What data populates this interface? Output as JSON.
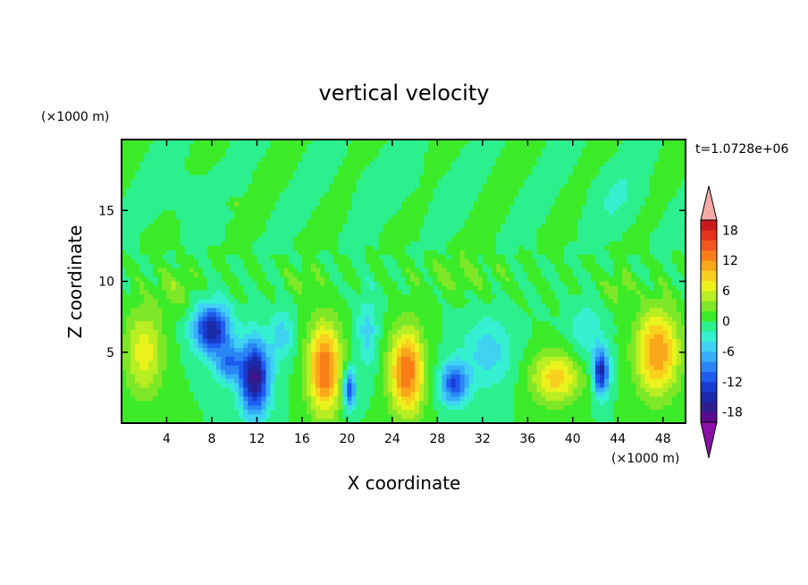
{
  "chart_data": {
    "type": "heatmap",
    "title": "vertical velocity",
    "xlabel": "X coordinate",
    "ylabel": "Z coordinate",
    "x_unit_label": "(×1000 m)",
    "y_unit_label": "(×1000 m)",
    "time_label": "t=1.0728e+06",
    "xlim": [
      0,
      50
    ],
    "ylim": [
      0,
      20
    ],
    "x_ticks": [
      4,
      8,
      12,
      16,
      20,
      24,
      28,
      32,
      36,
      40,
      44,
      48
    ],
    "y_ticks": [
      5,
      10,
      15
    ],
    "colorbar": {
      "levels": [
        -20,
        -18,
        -16,
        -14,
        -12,
        -10,
        -8,
        -6,
        -4,
        -2,
        0,
        2,
        4,
        6,
        8,
        10,
        12,
        14,
        16,
        18,
        20
      ],
      "tick_labels": [
        18,
        12,
        6,
        0,
        -6,
        -12,
        -18
      ],
      "colors": [
        "#5a0a8e",
        "#2f1c8e",
        "#1a2aa8",
        "#1a3ccf",
        "#1e5cf0",
        "#2a86f5",
        "#36aef7",
        "#3fd2f2",
        "#35f0d0",
        "#2cf08e",
        "#3ceb28",
        "#7ee828",
        "#b8ee22",
        "#ecf21c",
        "#fad01e",
        "#f9a61a",
        "#f97e18",
        "#f2561c",
        "#e4341e",
        "#c81c1c"
      ],
      "under_color": "#8b10a8",
      "over_color": "#f7aaa8"
    },
    "blobs": [
      {
        "x": 2.0,
        "z": 5.0,
        "sx": 1.7,
        "sz": 3.2,
        "v": 7
      },
      {
        "x": 4.8,
        "z": 9.5,
        "sx": 1.5,
        "sz": 1.6,
        "v": 3
      },
      {
        "x": 8.0,
        "z": 6.6,
        "sx": 1.6,
        "sz": 1.7,
        "v": -16
      },
      {
        "x": 9.5,
        "z": 4.2,
        "sx": 1.2,
        "sz": 1.3,
        "v": -9
      },
      {
        "x": 11.8,
        "z": 3.2,
        "sx": 1.3,
        "sz": 2.6,
        "v": -18
      },
      {
        "x": 14.2,
        "z": 6.2,
        "sx": 1.0,
        "sz": 1.8,
        "v": -5
      },
      {
        "x": 18.0,
        "z": 3.8,
        "sx": 1.5,
        "sz": 3.2,
        "v": 14
      },
      {
        "x": 20.2,
        "z": 2.4,
        "sx": 0.6,
        "sz": 1.4,
        "v": -12
      },
      {
        "x": 21.8,
        "z": 6.5,
        "sx": 0.9,
        "sz": 2.5,
        "v": -5
      },
      {
        "x": 25.3,
        "z": 3.6,
        "sx": 1.5,
        "sz": 3.0,
        "v": 14
      },
      {
        "x": 29.5,
        "z": 2.8,
        "sx": 1.2,
        "sz": 1.5,
        "v": -12
      },
      {
        "x": 32.5,
        "z": 5.0,
        "sx": 2.2,
        "sz": 2.5,
        "v": -5
      },
      {
        "x": 38.5,
        "z": 3.2,
        "sx": 2.2,
        "sz": 1.8,
        "v": 9
      },
      {
        "x": 42.5,
        "z": 3.6,
        "sx": 0.7,
        "sz": 1.6,
        "v": -15
      },
      {
        "x": 41.2,
        "z": 6.5,
        "sx": 1.5,
        "sz": 2.0,
        "v": -4
      },
      {
        "x": 47.5,
        "z": 5.0,
        "sx": 1.9,
        "sz": 3.0,
        "v": 12
      },
      {
        "x": 44.0,
        "z": 9.5,
        "sx": 1.2,
        "sz": 1.2,
        "v": 3
      },
      {
        "x": 16.0,
        "z": 10.0,
        "sx": 1.5,
        "sz": 1.2,
        "v": 2
      },
      {
        "x": 30.0,
        "z": 10.5,
        "sx": 4.0,
        "sz": 1.5,
        "v": 2
      },
      {
        "x": 24.0,
        "z": 17.0,
        "sx": 5.0,
        "sz": 2.0,
        "v": -1
      },
      {
        "x": 6.0,
        "z": 16.0,
        "sx": 3.0,
        "sz": 2.0,
        "v": -1.5
      },
      {
        "x": 44.0,
        "z": 16.0,
        "sx": 3.0,
        "sz": 2.5,
        "v": -1.5
      },
      {
        "x": 10.0,
        "z": 15.5,
        "sx": 0.6,
        "sz": 0.4,
        "v": 3
      }
    ]
  }
}
